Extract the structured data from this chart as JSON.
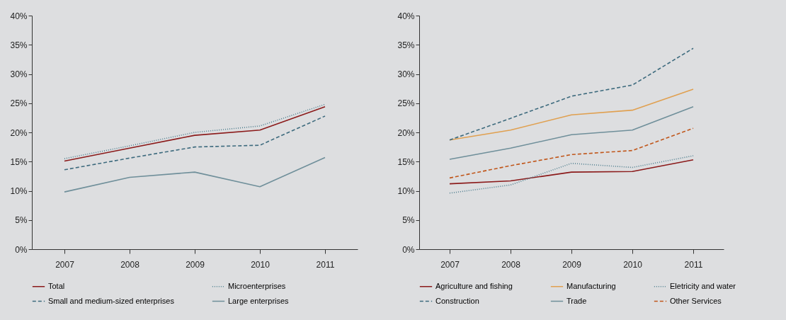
{
  "chart_data": [
    {
      "type": "line",
      "categories": [
        "2007",
        "2008",
        "2009",
        "2010",
        "2011"
      ],
      "ylim": [
        0,
        40
      ],
      "yticks": [
        {
          "value": 0,
          "label": "0%"
        },
        {
          "value": 5,
          "label": "5%"
        },
        {
          "value": 10,
          "label": "10%"
        },
        {
          "value": 15,
          "label": "15%"
        },
        {
          "value": 20,
          "label": "20%"
        },
        {
          "value": 25,
          "label": "25%"
        },
        {
          "value": 30,
          "label": "30%"
        },
        {
          "value": 35,
          "label": "35%"
        },
        {
          "value": 40,
          "label": "40%"
        }
      ],
      "legend": "bottom",
      "series": [
        {
          "name": "Total",
          "color": "#8b1a1a",
          "line_style": "solid",
          "values": [
            15.1,
            17.3,
            19.5,
            20.4,
            24.4
          ]
        },
        {
          "name": "Microenterprises",
          "color": "#4f7f8f",
          "line_style": "dotted",
          "values": [
            15.5,
            17.7,
            20.0,
            21.1,
            24.8
          ]
        },
        {
          "name": "Small and medium-sized enterprises",
          "color": "#3e6b7e",
          "line_style": "dashed",
          "values": [
            13.6,
            15.6,
            17.5,
            17.8,
            22.8
          ]
        },
        {
          "name": "Large enterprises",
          "color": "#6f8f9a",
          "line_style": "solid",
          "values": [
            9.8,
            12.3,
            13.2,
            10.7,
            15.7
          ]
        }
      ]
    },
    {
      "type": "line",
      "categories": [
        "2007",
        "2008",
        "2009",
        "2010",
        "2011"
      ],
      "ylim": [
        0,
        40
      ],
      "yticks": [
        {
          "value": 0,
          "label": "0%"
        },
        {
          "value": 5,
          "label": "5%"
        },
        {
          "value": 10,
          "label": "10%"
        },
        {
          "value": 15,
          "label": "15%"
        },
        {
          "value": 20,
          "label": "20%"
        },
        {
          "value": 25,
          "label": "25%"
        },
        {
          "value": 30,
          "label": "30%"
        },
        {
          "value": 35,
          "label": "35%"
        },
        {
          "value": 40,
          "label": "40%"
        }
      ],
      "legend": "bottom",
      "series": [
        {
          "name": "Agriculture and fishing",
          "color": "#8b1a1a",
          "line_style": "solid",
          "values": [
            11.2,
            11.7,
            13.2,
            13.3,
            15.3
          ]
        },
        {
          "name": "Manufacturing",
          "color": "#e0a050",
          "line_style": "solid",
          "values": [
            18.7,
            20.4,
            23.0,
            23.8,
            27.4
          ]
        },
        {
          "name": "Eletricity and water",
          "color": "#4f7f8f",
          "line_style": "dotted",
          "values": [
            9.6,
            11.0,
            14.7,
            14.0,
            16.0
          ]
        },
        {
          "name": "Construction",
          "color": "#3e6b7e",
          "line_style": "dashed",
          "values": [
            18.7,
            22.4,
            26.2,
            28.1,
            34.4
          ]
        },
        {
          "name": "Trade",
          "color": "#6f8f9a",
          "line_style": "solid",
          "values": [
            15.4,
            17.3,
            19.6,
            20.4,
            24.4
          ]
        },
        {
          "name": "Other Services",
          "color": "#c0561a",
          "line_style": "dashed",
          "values": [
            12.2,
            14.3,
            16.2,
            16.9,
            20.7
          ]
        }
      ]
    }
  ]
}
